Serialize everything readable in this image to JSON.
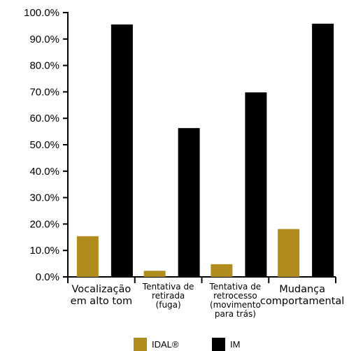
{
  "chart_data": {
    "type": "bar",
    "title": "",
    "xlabel": "",
    "ylabel": "",
    "ylim": [
      0,
      100
    ],
    "y_ticks": [
      "0.0%",
      "10.0%",
      "20.0%",
      "30.0%",
      "40.0%",
      "50.0%",
      "60.0%",
      "70.0%",
      "80.0%",
      "90.0%",
      "100.0%"
    ],
    "categories": [
      [
        "Vocalização",
        "em alto tom"
      ],
      [
        "Tentativa de",
        "retirada",
        "(fuga)"
      ],
      [
        "Tentativa de",
        "retrocesso",
        "(movimento",
        "para trás)"
      ],
      [
        "Mudança",
        "comportamental"
      ]
    ],
    "series": [
      {
        "name": "IDAL®",
        "color": "#B08C1E",
        "values": [
          15.4,
          2.3,
          4.8,
          18.1
        ]
      },
      {
        "name": "IM",
        "color": "#000000",
        "values": [
          95.5,
          56.3,
          69.8,
          95.8
        ]
      }
    ],
    "grid": false,
    "legend": "bottom"
  }
}
